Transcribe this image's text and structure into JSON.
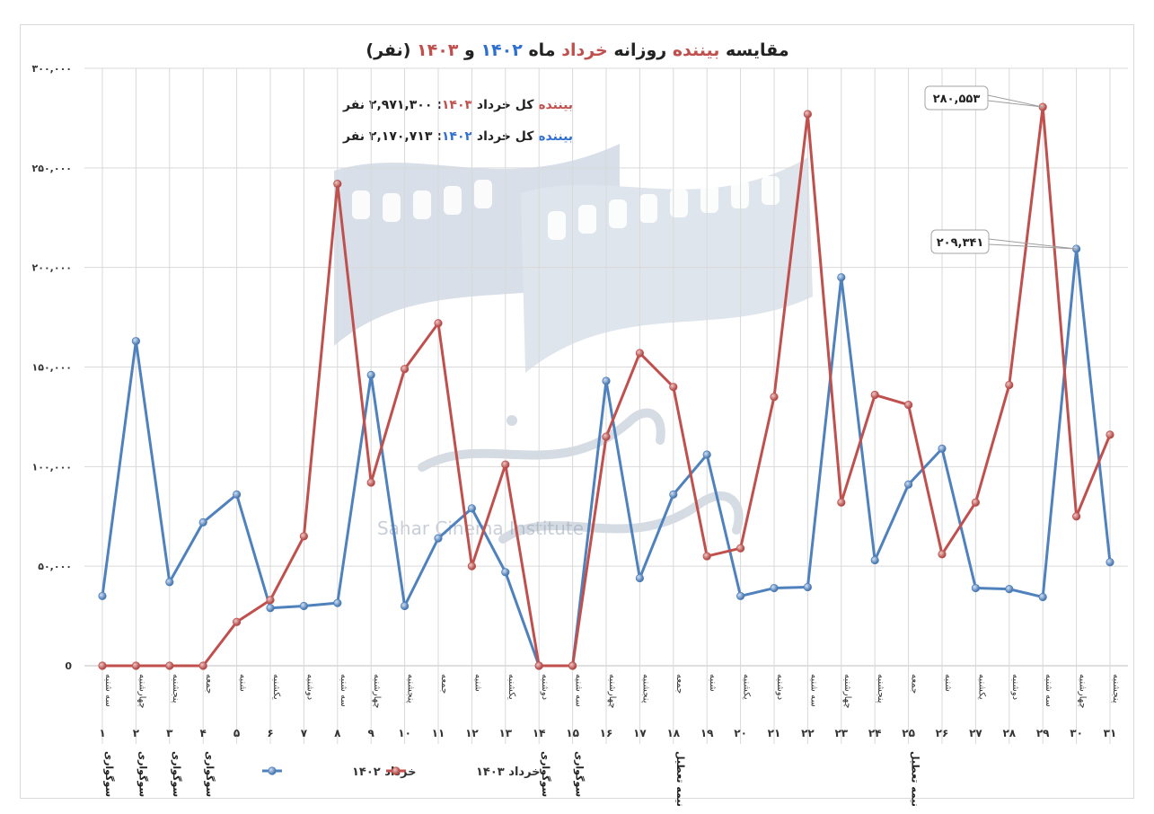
{
  "chart_data": {
    "type": "line",
    "title": {
      "p1": "مقایسه ",
      "p2": "بیننده",
      "p3": " روزانه ",
      "p4": "خرداد",
      "p5": " ماه ",
      "p6": "۱۴۰۲",
      "p7": " و ",
      "p8": "۱۴۰۳",
      "p9": " (نفر)"
    },
    "summary": [
      {
        "a": "بیننده",
        "b": " کل خرداد ",
        "c": "۱۴۰۳",
        "d": ": ۲,۹۷۱,۳۰۰ نفر",
        "color": "#c0504d"
      },
      {
        "a": "بیننده",
        "b": " کل خرداد ",
        "c": "۱۴۰۲",
        "d": ": ۲,۱۷۰,۷۱۳ نفر",
        "color": "#4f81bd"
      }
    ],
    "ylim": [
      0,
      300000
    ],
    "yticks": [
      {
        "v": 0,
        "label": "0"
      },
      {
        "v": 50000,
        "label": "۵۰,۰۰۰"
      },
      {
        "v": 100000,
        "label": "۱۰۰,۰۰۰"
      },
      {
        "v": 150000,
        "label": "۱۵۰,۰۰۰"
      },
      {
        "v": 200000,
        "label": "۲۰۰,۰۰۰"
      },
      {
        "v": 250000,
        "label": "۲۵۰,۰۰۰"
      },
      {
        "v": 300000,
        "label": "۳۰۰,۰۰۰"
      }
    ],
    "weekdays": [
      "سه شنبه",
      "چهارشنبه",
      "پنجشنبه",
      "جمعه",
      "شنبه",
      "یکشنبه",
      "دوشنبه",
      "سه شنبه",
      "چهارشنبه",
      "پنجشنبه",
      "جمعه",
      "شنبه",
      "یکشنبه",
      "دوشنبه",
      "سه شنبه",
      "چهارشنبه",
      "پنجشنبه",
      "جمعه",
      "شنبه",
      "یکشنبه",
      "دوشنبه",
      "سه شنبه",
      "چهارشنبه",
      "پنجشنبه",
      "جمعه",
      "شنبه",
      "یکشنبه",
      "دوشنبه",
      "سه شنبه",
      "چهارشنبه",
      "پنجشنبه"
    ],
    "days": [
      "۱",
      "۲",
      "۳",
      "۴",
      "۵",
      "۶",
      "۷",
      "۸",
      "۹",
      "۱۰",
      "۱۱",
      "۱۲",
      "۱۳",
      "۱۴",
      "۱۵",
      "۱۶",
      "۱۷",
      "۱۸",
      "۱۹",
      "۲۰",
      "۲۱",
      "۲۲",
      "۲۳",
      "۲۴",
      "۲۵",
      "۲۶",
      "۲۷",
      "۲۸",
      "۲۹",
      "۳۰",
      "۳۱"
    ],
    "notes": [
      "سوگواری",
      "سوگواری",
      "سوگواری",
      "سوگواری",
      "",
      "",
      "",
      "",
      "",
      "",
      "",
      "",
      "",
      "سوگواری",
      "سوگواری",
      "",
      "",
      "نیمه تعطیل",
      "",
      "",
      "",
      "",
      "",
      "",
      "نیمه تعطیل",
      "",
      "",
      "",
      "",
      "",
      ""
    ],
    "series": [
      {
        "name": "خرداد ۱۴۰۲",
        "color": "#4f81bd",
        "values": [
          35000,
          163000,
          42000,
          72000,
          86000,
          29000,
          30000,
          31500,
          146000,
          30000,
          64000,
          79000,
          47000,
          0,
          0,
          143000,
          44000,
          86000,
          106000,
          35000,
          39000,
          39500,
          195000,
          53000,
          91000,
          109000,
          39000,
          38500,
          34500,
          209341,
          52000
        ]
      },
      {
        "name": "خرداد ۱۴۰۳",
        "color": "#c0504d",
        "values": [
          0,
          0,
          0,
          0,
          22000,
          33000,
          65000,
          242000,
          92000,
          149000,
          172000,
          50000,
          101000,
          0,
          0,
          115000,
          157000,
          140000,
          55000,
          59000,
          135000,
          277000,
          82000,
          136000,
          131000,
          56000,
          82000,
          141000,
          280553,
          75000,
          116000
        ]
      }
    ],
    "callouts": [
      {
        "series": 1,
        "index": 28,
        "label": "۲۸۰,۵۵۳"
      },
      {
        "series": 0,
        "index": 29,
        "label": "۲۰۹,۳۴۱"
      }
    ],
    "watermark": {
      "brand": "Sahar Cinema Institute"
    },
    "legend_position": "bottom"
  }
}
